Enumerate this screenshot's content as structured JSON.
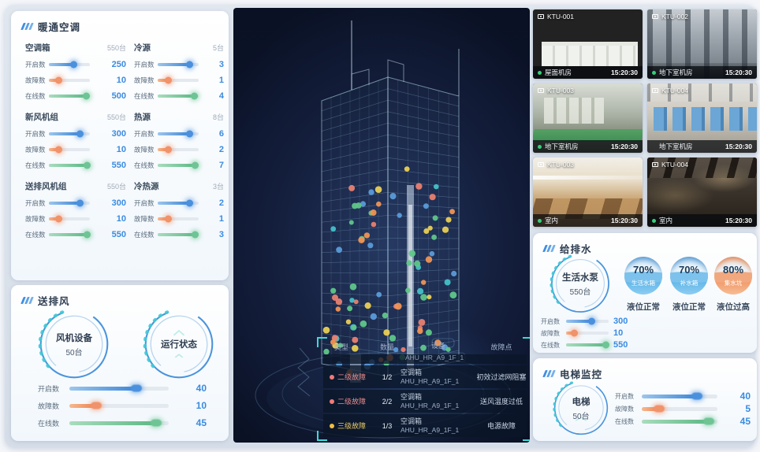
{
  "hvac": {
    "title": "暖通空调",
    "slider_types": [
      "open",
      "fault",
      "online"
    ],
    "groups": [
      {
        "name": "空调箱",
        "total": "550台",
        "rows": [
          {
            "label": "开启数",
            "value": "250",
            "pct": 62
          },
          {
            "label": "故障数",
            "value": "10",
            "pct": 25
          },
          {
            "label": "在线数",
            "value": "500",
            "pct": 92
          }
        ]
      },
      {
        "name": "冷源",
        "total": "5台",
        "rows": [
          {
            "label": "开启数",
            "value": "3",
            "pct": 78
          },
          {
            "label": "故障数",
            "value": "1",
            "pct": 27
          },
          {
            "label": "在线数",
            "value": "4",
            "pct": 90
          }
        ]
      },
      {
        "name": "新风机组",
        "total": "550台",
        "rows": [
          {
            "label": "开启数",
            "value": "300",
            "pct": 76
          },
          {
            "label": "故障数",
            "value": "10",
            "pct": 25
          },
          {
            "label": "在线数",
            "value": "550",
            "pct": 95
          }
        ]
      },
      {
        "name": "热源",
        "total": "8台",
        "rows": [
          {
            "label": "开启数",
            "value": "6",
            "pct": 78
          },
          {
            "label": "故障数",
            "value": "2",
            "pct": 27
          },
          {
            "label": "在线数",
            "value": "7",
            "pct": 93
          }
        ]
      },
      {
        "name": "送排风机组",
        "total": "550台",
        "rows": [
          {
            "label": "开启数",
            "value": "300",
            "pct": 76
          },
          {
            "label": "故障数",
            "value": "10",
            "pct": 25
          },
          {
            "label": "在线数",
            "value": "550",
            "pct": 95
          }
        ]
      },
      {
        "name": "冷热源",
        "total": "3台",
        "rows": [
          {
            "label": "开启数",
            "value": "2",
            "pct": 78
          },
          {
            "label": "故障数",
            "value": "1",
            "pct": 27
          },
          {
            "label": "在线数",
            "value": "3",
            "pct": 93
          }
        ]
      }
    ]
  },
  "fans": {
    "title": "送排风",
    "gauge1": {
      "line1": "风机设备",
      "line2": "50台"
    },
    "gauge2": {
      "line1": "运行状态",
      "line2": ""
    },
    "rows": [
      {
        "label": "开启数",
        "value": "40",
        "pct": 68
      },
      {
        "label": "故障数",
        "value": "10",
        "pct": 28
      },
      {
        "label": "在线数",
        "value": "45",
        "pct": 88
      }
    ]
  },
  "building": {
    "dot_colors": [
      "#5fc689",
      "#45c0c8",
      "#5b9bd8",
      "#ef9355",
      "#e9cf55",
      "#e87f70"
    ],
    "table": {
      "headers": [
        "类型",
        "数量",
        "设备",
        "故障点"
      ],
      "partial_device": "AHU_HR_A9_1F_1",
      "rows": [
        {
          "level": "二级故障",
          "level_color": "#e88b8b",
          "dot_color": "#f07a7a",
          "count": "1/2",
          "device_type": "空调箱",
          "device_id": "AHU_HR_A9_1F_1",
          "fault": "初效过滤网阻塞"
        },
        {
          "level": "二级故障",
          "level_color": "#e88b8b",
          "dot_color": "#f07a7a",
          "count": "2/2",
          "device_type": "空调箱",
          "device_id": "AHU_HR_A9_1F_1",
          "fault": "送风温度过低"
        },
        {
          "level": "三级故障",
          "level_color": "#e8c86a",
          "dot_color": "#f0c040",
          "count": "1/3",
          "device_type": "空调箱",
          "device_id": "AHU_HR_A9_1F_1",
          "fault": "电源故障"
        }
      ]
    }
  },
  "cameras": [
    {
      "id": "KTU-001",
      "location": "屋面机房",
      "time": "15:20:30",
      "online": true
    },
    {
      "id": "KTU-002",
      "location": "地下室机房",
      "time": "15:20:30",
      "online": true
    },
    {
      "id": "KTU-003",
      "location": "地下室机房",
      "time": "15:20:30",
      "online": true
    },
    {
      "id": "KTU-004",
      "location": "地下室机房",
      "time": "15:20:30",
      "online": false
    },
    {
      "id": "KTU-003",
      "location": "室内",
      "time": "15:20:30",
      "online": true
    },
    {
      "id": "KTU-004",
      "location": "室内",
      "time": "15:20:30",
      "online": true
    }
  ],
  "water": {
    "title": "给排水",
    "gauge": {
      "line1": "生活水泵",
      "line2": "550台"
    },
    "rows": [
      {
        "label": "开启数",
        "value": "300",
        "pct": 62
      },
      {
        "label": "故障数",
        "value": "10",
        "pct": 20
      },
      {
        "label": "在线数",
        "value": "550",
        "pct": 95
      }
    ],
    "tanks": [
      {
        "pct": "70%",
        "name": "生活水箱",
        "status": "液位正常",
        "level": 70,
        "tone": "blue"
      },
      {
        "pct": "70%",
        "name": "补水箱",
        "status": "液位正常",
        "level": 70,
        "tone": "blue"
      },
      {
        "pct": "80%",
        "name": "集水坑",
        "status": "液位过高",
        "level": 80,
        "tone": "orange"
      }
    ]
  },
  "elevator": {
    "title": "电梯监控",
    "gauge": {
      "line1": "电梯",
      "line2": "50台"
    },
    "rows": [
      {
        "label": "开启数",
        "value": "40",
        "pct": 74
      },
      {
        "label": "故障数",
        "value": "5",
        "pct": 24
      },
      {
        "label": "在线数",
        "value": "45",
        "pct": 90
      }
    ]
  },
  "colors": {
    "accent_blue": "#3a8be0",
    "accent_orange": "#f0926a",
    "accent_green": "#6ec494",
    "bracket_cyan": "#3fd8d8",
    "panel_bg": "#f1f7fc",
    "board_bg": "#d9e1ea",
    "center_bg": "#0c142c"
  }
}
